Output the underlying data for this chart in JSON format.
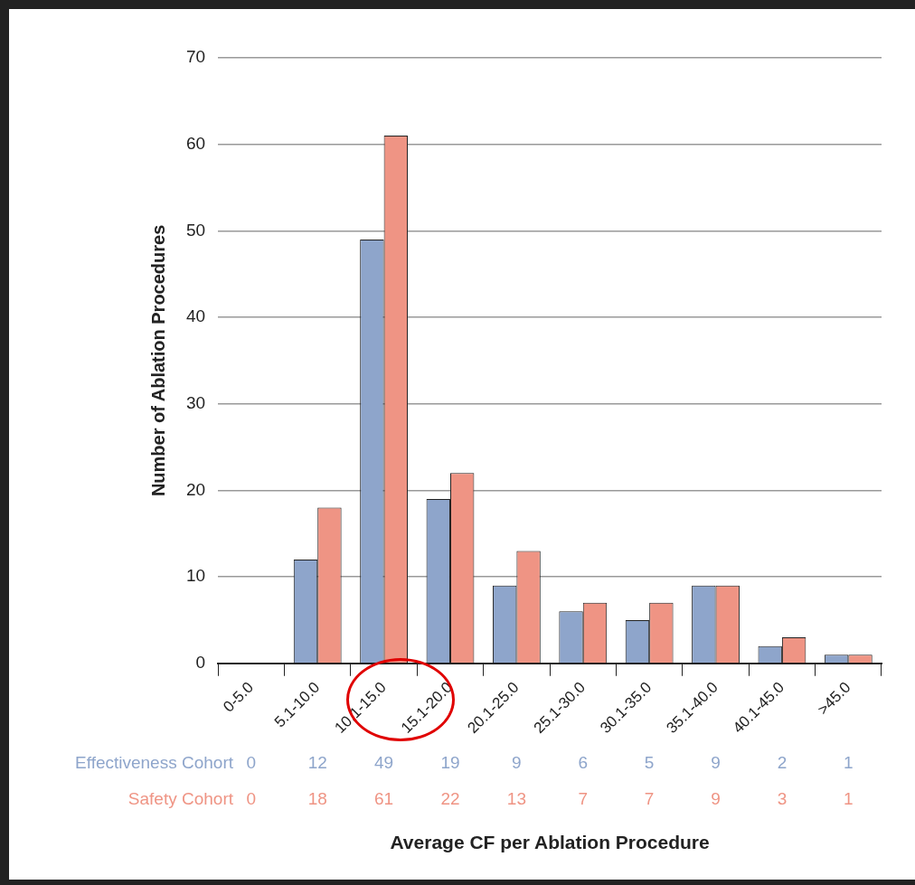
{
  "chart_data": {
    "type": "bar",
    "xlabel": "Average CF per Ablation Procedure",
    "ylabel": "Number of Ablation Procedures",
    "categories": [
      "0-5.0",
      "5.1-10.0",
      "10.1-15.0",
      "15.1-20.0",
      "20.1-25.0",
      "25.1-30.0",
      "30.1-35.0",
      "35.1-40.0",
      "40.1-45.0",
      ">45.0"
    ],
    "series": [
      {
        "name": "Effectiveness Cohort",
        "color": "#8ea5cb",
        "values": [
          0,
          12,
          49,
          19,
          9,
          6,
          5,
          9,
          2,
          1
        ]
      },
      {
        "name": "Safety Cohort",
        "color": "#ef9484",
        "values": [
          0,
          18,
          61,
          22,
          13,
          7,
          7,
          9,
          3,
          1
        ]
      }
    ],
    "ylim": [
      0,
      70
    ],
    "yticks": [
      0,
      10,
      20,
      30,
      40,
      50,
      60,
      70
    ],
    "grid": "y",
    "legend": false,
    "data_labels": true
  }
}
